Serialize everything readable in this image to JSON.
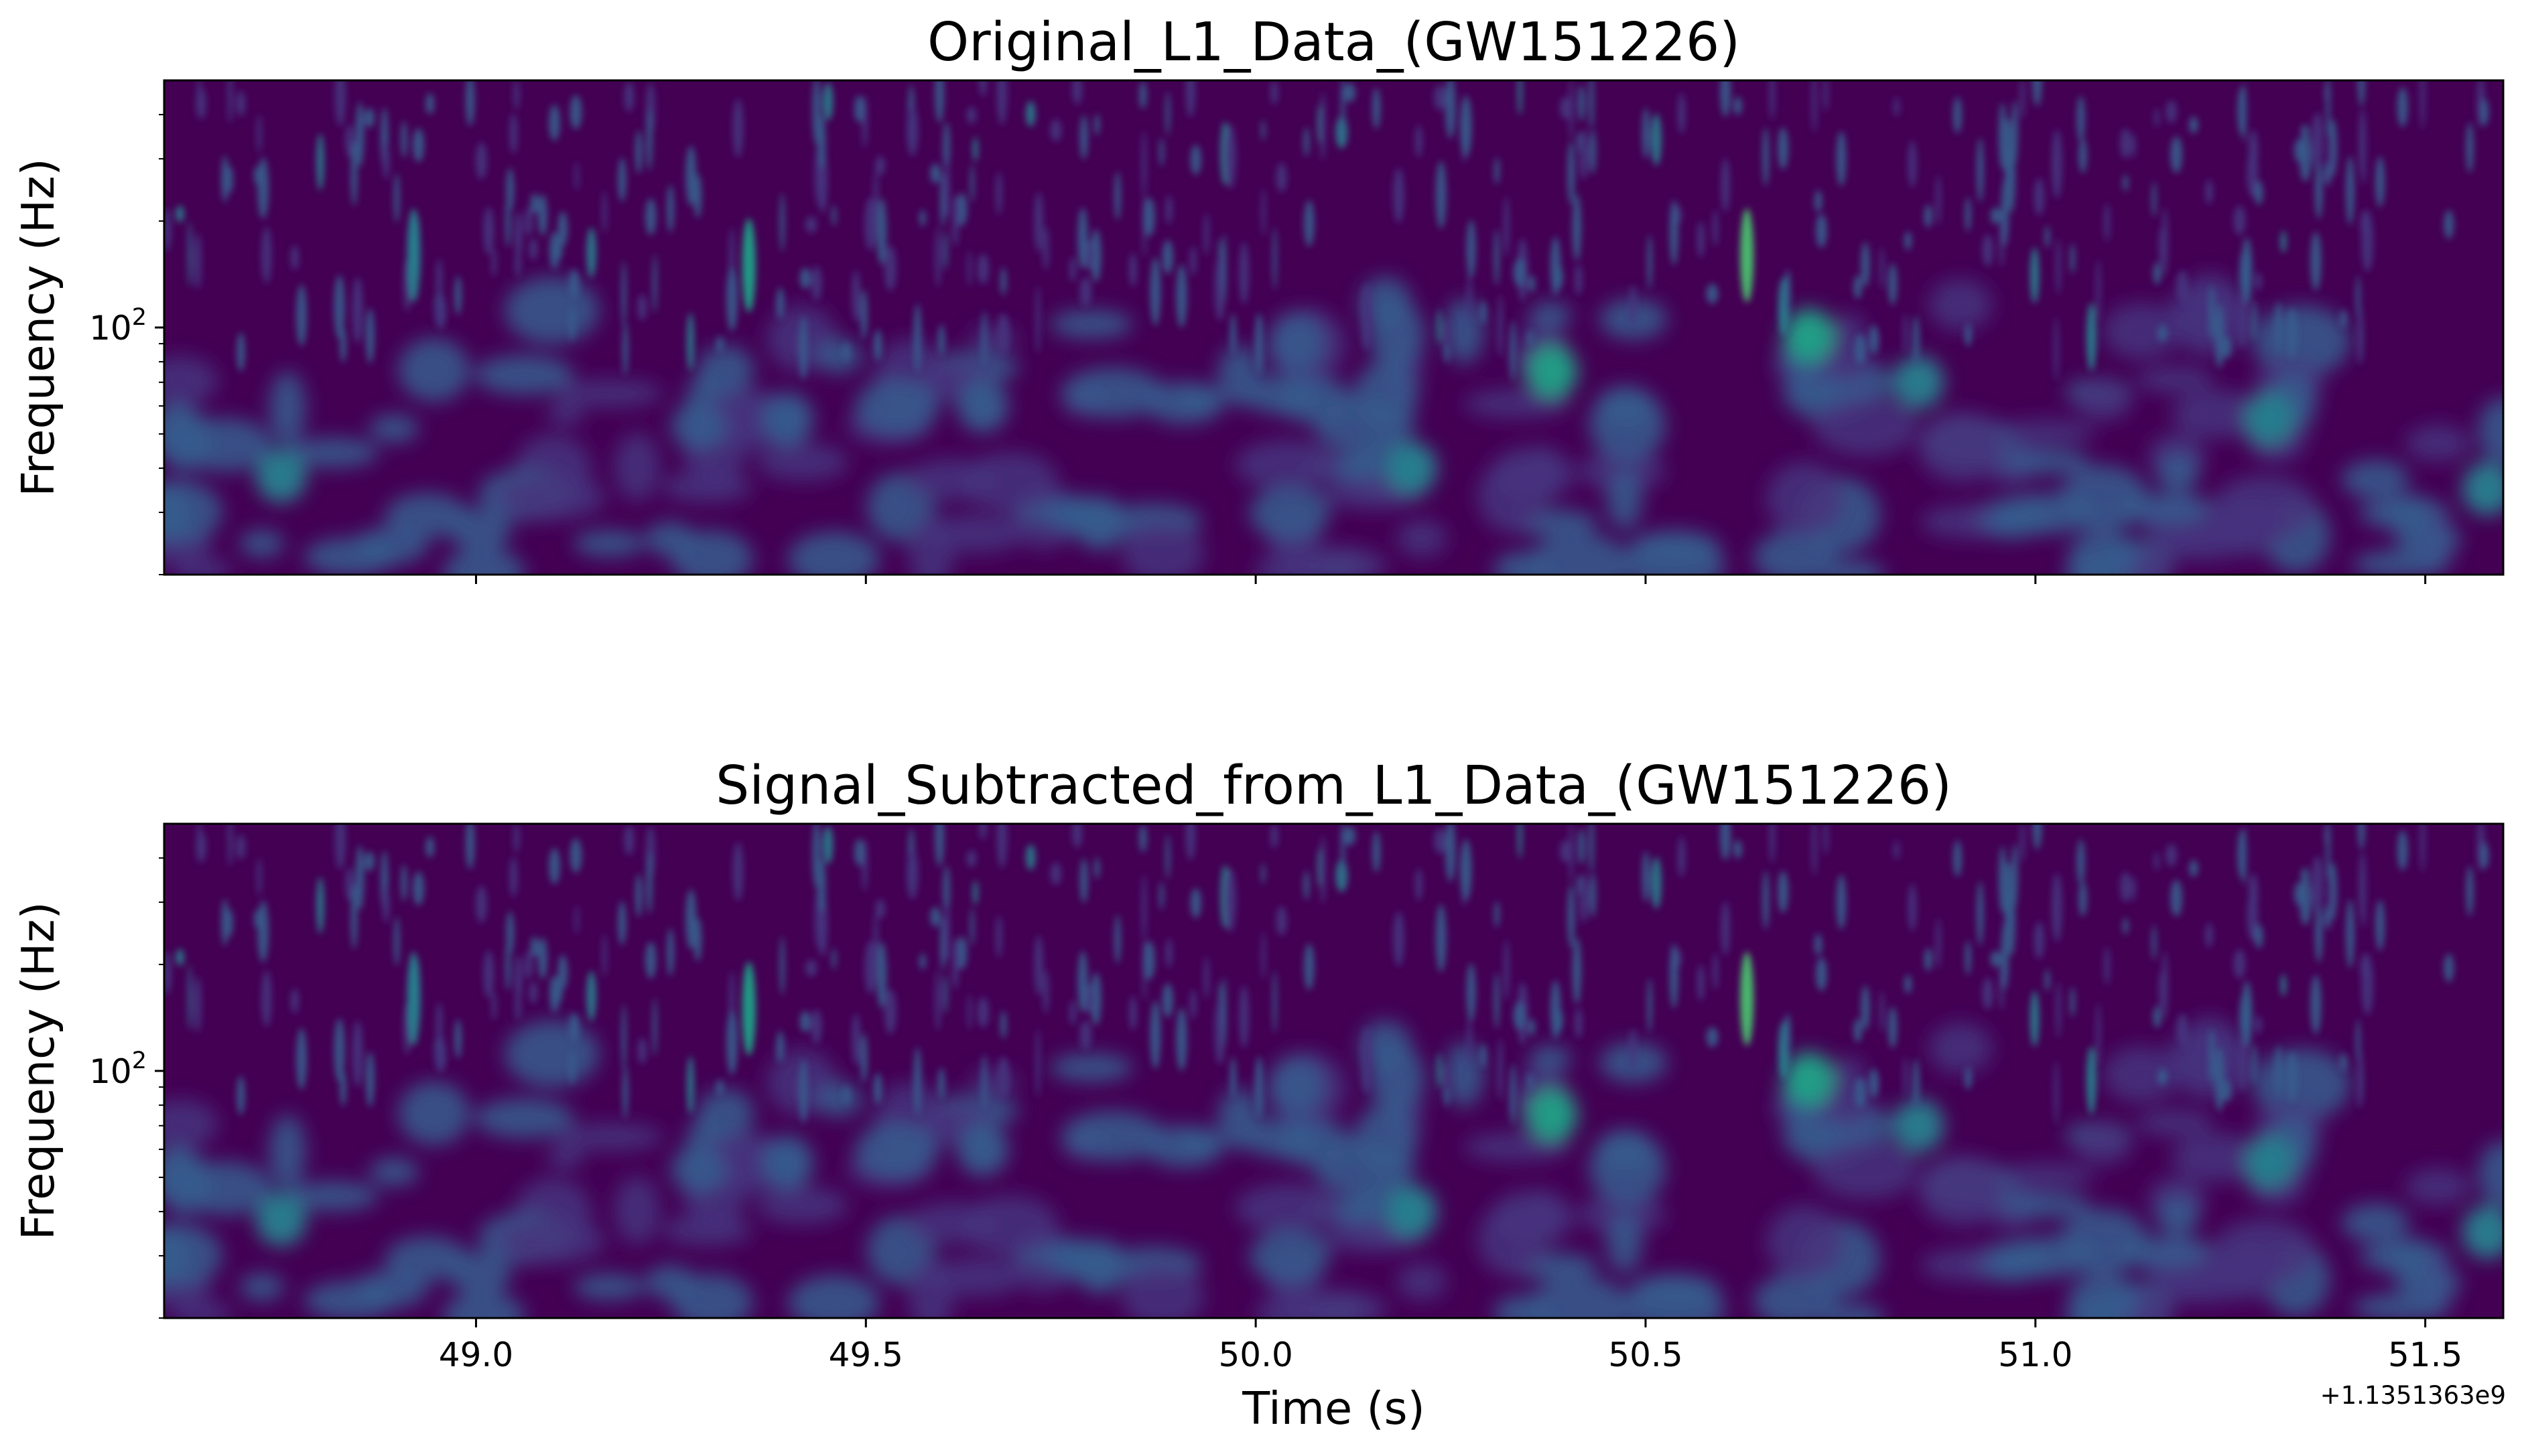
{
  "chart_data": [
    {
      "type": "heatmap",
      "title": "Original_L1_Data_(GW151226)",
      "xlabel": "",
      "ylabel": "Frequency (Hz)",
      "xscale": "linear",
      "yscale": "log",
      "colormap": "viridis",
      "xlim": [
        48.6,
        51.6
      ],
      "ylim": [
        20,
        500
      ],
      "xticks": [
        49.0,
        49.5,
        50.0,
        50.5,
        51.0,
        51.5
      ],
      "xtick_labels_visible": false,
      "ytick_labels": [
        "10^2"
      ],
      "features": [
        {
          "t": 48.6,
          "f": 30,
          "level": 0.35
        },
        {
          "t": 48.75,
          "f": 38,
          "level": 0.4
        },
        {
          "t": 48.92,
          "f": 160,
          "level": 0.45
        },
        {
          "t": 49.35,
          "f": 150,
          "level": 0.5
        },
        {
          "t": 49.4,
          "f": 55,
          "level": 0.35
        },
        {
          "t": 49.65,
          "f": 60,
          "level": 0.35
        },
        {
          "t": 49.8,
          "f": 28,
          "level": 0.35
        },
        {
          "t": 50.2,
          "f": 40,
          "level": 0.45
        },
        {
          "t": 50.38,
          "f": 75,
          "level": 0.6
        },
        {
          "t": 50.63,
          "f": 160,
          "level": 0.75
        },
        {
          "t": 50.71,
          "f": 95,
          "level": 0.5
        },
        {
          "t": 50.85,
          "f": 70,
          "level": 0.45
        },
        {
          "t": 51.3,
          "f": 55,
          "level": 0.45
        },
        {
          "t": 51.58,
          "f": 35,
          "level": 0.4
        }
      ]
    },
    {
      "type": "heatmap",
      "title": "Signal_Subtracted_from_L1_Data_(GW151226)",
      "xlabel": "Time (s)",
      "ylabel": "Frequency (Hz)",
      "xscale": "linear",
      "yscale": "log",
      "colormap": "viridis",
      "xlim": [
        48.6,
        51.6
      ],
      "ylim": [
        20,
        500
      ],
      "xticks": [
        49.0,
        49.5,
        50.0,
        50.5,
        51.0,
        51.5
      ],
      "xtick_labels": [
        "49.0",
        "49.5",
        "50.0",
        "50.5",
        "51.0",
        "51.5"
      ],
      "xoffset_label": "+1.1351363e9",
      "ytick_labels": [
        "10^2"
      ],
      "features": [
        {
          "t": 48.6,
          "f": 30,
          "level": 0.35
        },
        {
          "t": 48.75,
          "f": 38,
          "level": 0.4
        },
        {
          "t": 48.92,
          "f": 160,
          "level": 0.45
        },
        {
          "t": 49.35,
          "f": 150,
          "level": 0.5
        },
        {
          "t": 49.4,
          "f": 55,
          "level": 0.35
        },
        {
          "t": 49.65,
          "f": 60,
          "level": 0.35
        },
        {
          "t": 49.8,
          "f": 28,
          "level": 0.35
        },
        {
          "t": 50.2,
          "f": 40,
          "level": 0.45
        },
        {
          "t": 50.38,
          "f": 75,
          "level": 0.6
        },
        {
          "t": 50.63,
          "f": 160,
          "level": 0.7
        },
        {
          "t": 50.71,
          "f": 95,
          "level": 0.5
        },
        {
          "t": 50.85,
          "f": 70,
          "level": 0.45
        },
        {
          "t": 51.3,
          "f": 55,
          "level": 0.45
        },
        {
          "t": 51.58,
          "f": 35,
          "level": 0.4
        }
      ]
    }
  ],
  "colors": {
    "background": "#440154",
    "colormap_stops": [
      "#440154",
      "#46337e",
      "#365c8d",
      "#277f8e",
      "#1fa187",
      "#4ac16d",
      "#a0da39",
      "#fde725"
    ]
  }
}
